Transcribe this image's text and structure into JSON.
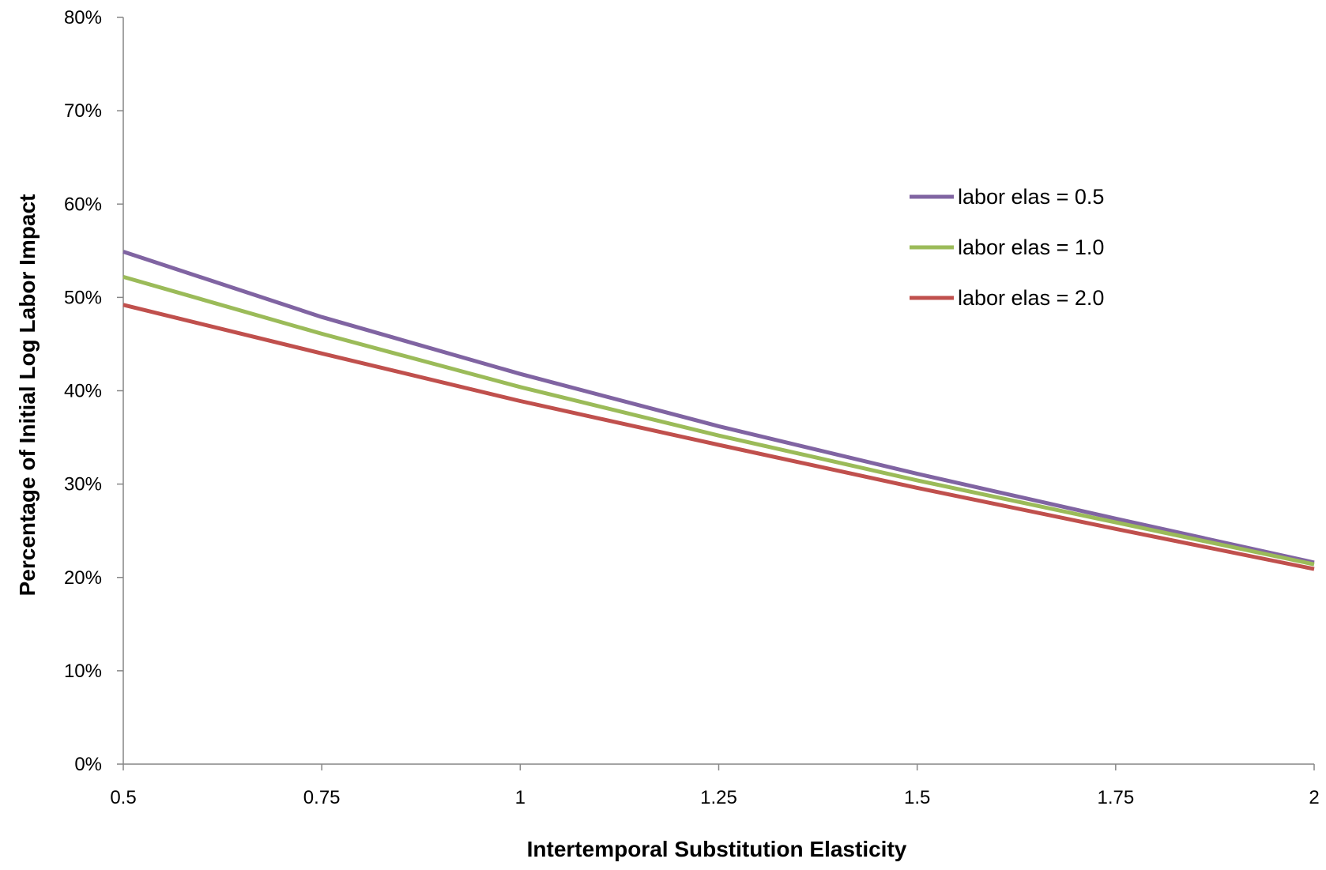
{
  "chart_data": {
    "type": "line",
    "title": "",
    "xlabel": "Intertemporal Substitution Elasticity",
    "ylabel": "Percentage of Initial Log Labor Impact",
    "xlim": [
      0.5,
      2
    ],
    "ylim": [
      0,
      0.8
    ],
    "x_ticks": [
      0.5,
      0.75,
      1,
      1.25,
      1.5,
      1.75,
      2
    ],
    "x_tick_labels": [
      "0.5",
      "0.75",
      "1",
      "1.25",
      "1.5",
      "1.75",
      "2"
    ],
    "y_ticks": [
      0,
      0.1,
      0.2,
      0.3,
      0.4,
      0.5,
      0.6,
      0.7,
      0.8
    ],
    "y_tick_labels": [
      "0%",
      "10%",
      "20%",
      "30%",
      "40%",
      "50%",
      "60%",
      "70%",
      "80%"
    ],
    "grid": false,
    "legend_position": "right",
    "x": [
      0.5,
      0.75,
      1,
      1.25,
      1.5,
      1.75,
      2
    ],
    "series": [
      {
        "name": "labor elas = 0.5",
        "color": "#8064a2",
        "values": [
          0.549,
          0.479,
          0.418,
          0.362,
          0.311,
          0.263,
          0.216
        ]
      },
      {
        "name": "labor elas = 1.0",
        "color": "#9bbb59",
        "values": [
          0.522,
          0.461,
          0.404,
          0.352,
          0.304,
          0.259,
          0.214
        ]
      },
      {
        "name": "labor elas = 2.0",
        "color": "#c0504d",
        "values": [
          0.492,
          0.44,
          0.389,
          0.342,
          0.296,
          0.252,
          0.209
        ]
      }
    ]
  }
}
